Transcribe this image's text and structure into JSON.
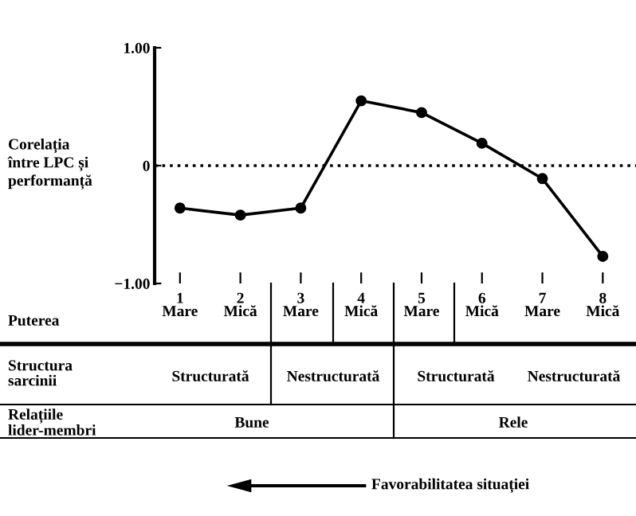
{
  "chart_data": {
    "type": "line",
    "ylabel": "Corelația\nîntre LPC și\nperformanță",
    "categories": [
      "1\nMare",
      "2\nMică",
      "3\nMare",
      "4\nMică",
      "5\nMare",
      "6\nMică",
      "7\nMare",
      "8\nMică"
    ],
    "series": [
      {
        "color": "#000000",
        "values": [
          -0.36,
          -0.42,
          -0.36,
          0.55,
          0.45,
          0.19,
          -0.11,
          -0.77
        ]
      }
    ],
    "ylim": [
      -1,
      1
    ],
    "yticks": [
      {
        "value": -1,
        "label": "−1.00"
      },
      0,
      {
        "value": 1,
        "label": "1.00"
      }
    ],
    "ref_lines": [
      {
        "axis": "y",
        "value": 0,
        "line_style": "dotted",
        "color": "#000000"
      }
    ],
    "marker": "circle",
    "line_style": "solid",
    "grid": false,
    "legend": false,
    "annotations": [
      "Puterea",
      "Structura\nsarcinii",
      "Structurată",
      "Nestructurată",
      "Structurată",
      "Nestructurată",
      "Relațiile\nlider-membri",
      "Bune",
      "Rele",
      "Favorabilitatea situației"
    ]
  }
}
